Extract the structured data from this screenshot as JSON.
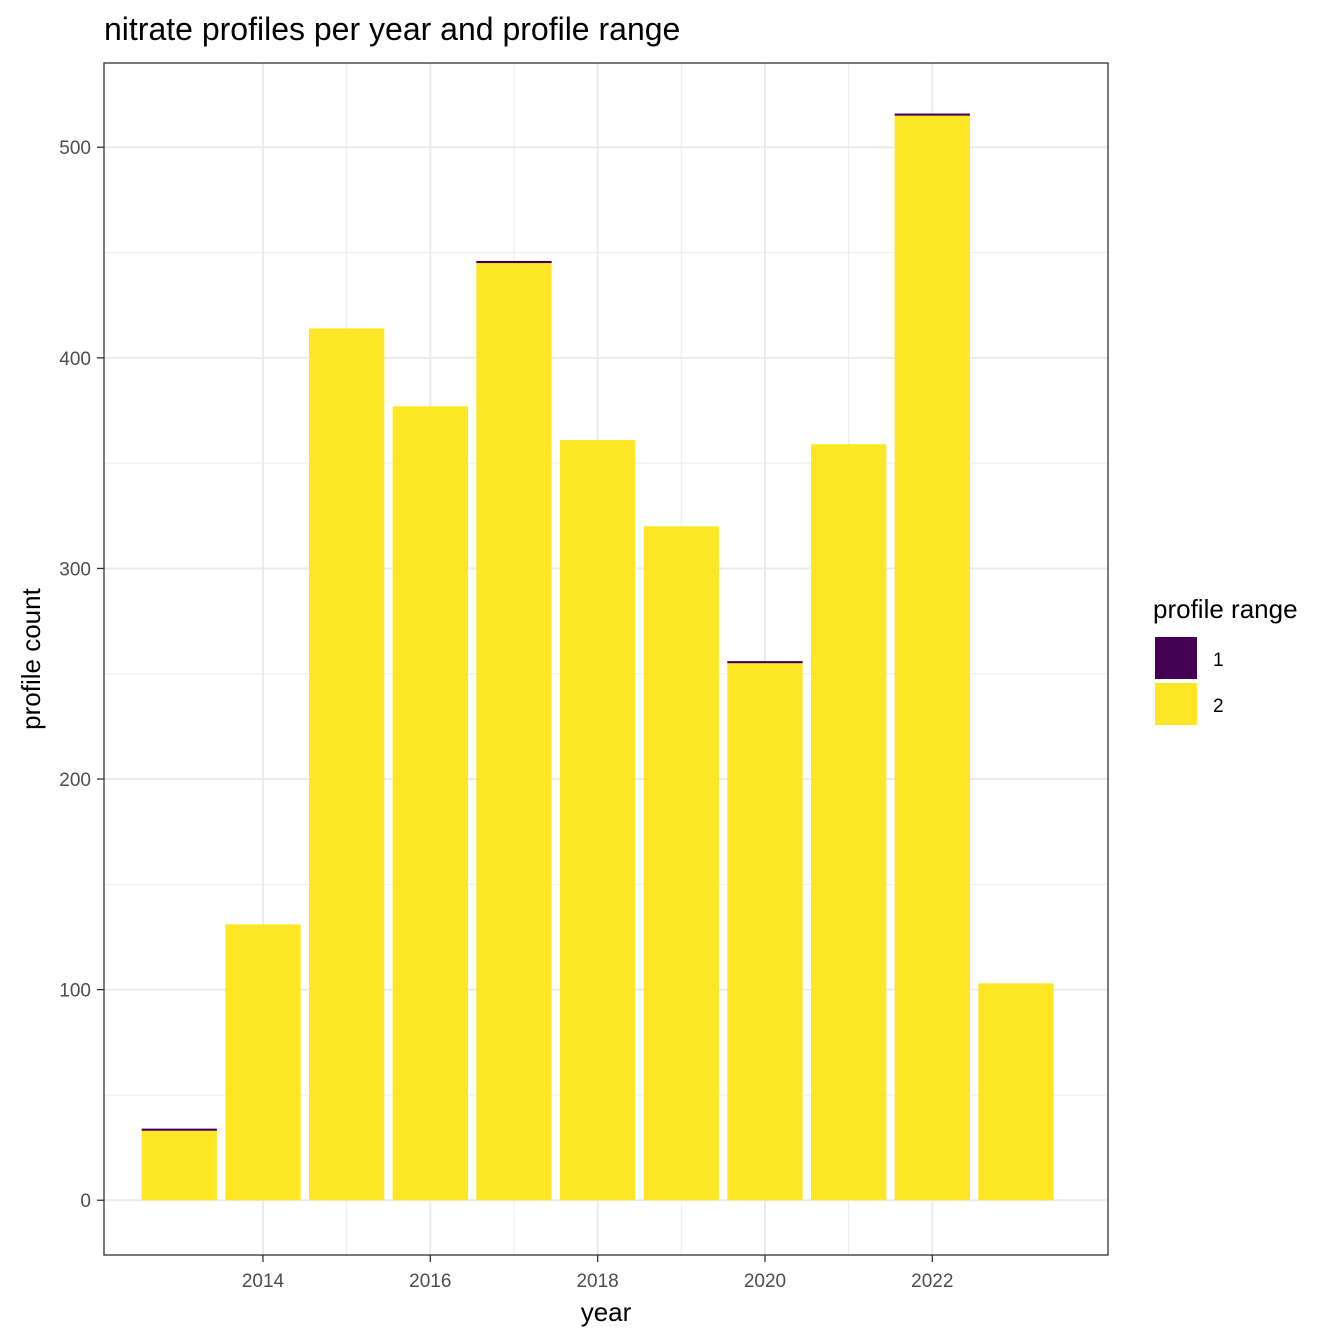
{
  "chart_data": {
    "type": "bar",
    "stacked": true,
    "title": "nitrate profiles per year and profile range",
    "xlabel": "year",
    "ylabel": "profile count",
    "x": [
      2013,
      2014,
      2015,
      2016,
      2017,
      2018,
      2019,
      2020,
      2021,
      2022,
      2023
    ],
    "xticks": [
      2014,
      2016,
      2018,
      2020,
      2022
    ],
    "xlim": [
      2012.1,
      2024.1
    ],
    "yticks": [
      0,
      100,
      200,
      300,
      400,
      500
    ],
    "ylim": [
      -26,
      540
    ],
    "grid": true,
    "legend": {
      "title": "profile range",
      "position": "right"
    },
    "series": [
      {
        "name": "1",
        "color": "#440154",
        "values": [
          1,
          0,
          0,
          0,
          1,
          0,
          0,
          1,
          0,
          1,
          0
        ]
      },
      {
        "name": "2",
        "color": "#FDE725",
        "values": [
          33,
          131,
          414,
          377,
          445,
          361,
          320,
          255,
          359,
          515,
          103
        ]
      }
    ]
  }
}
